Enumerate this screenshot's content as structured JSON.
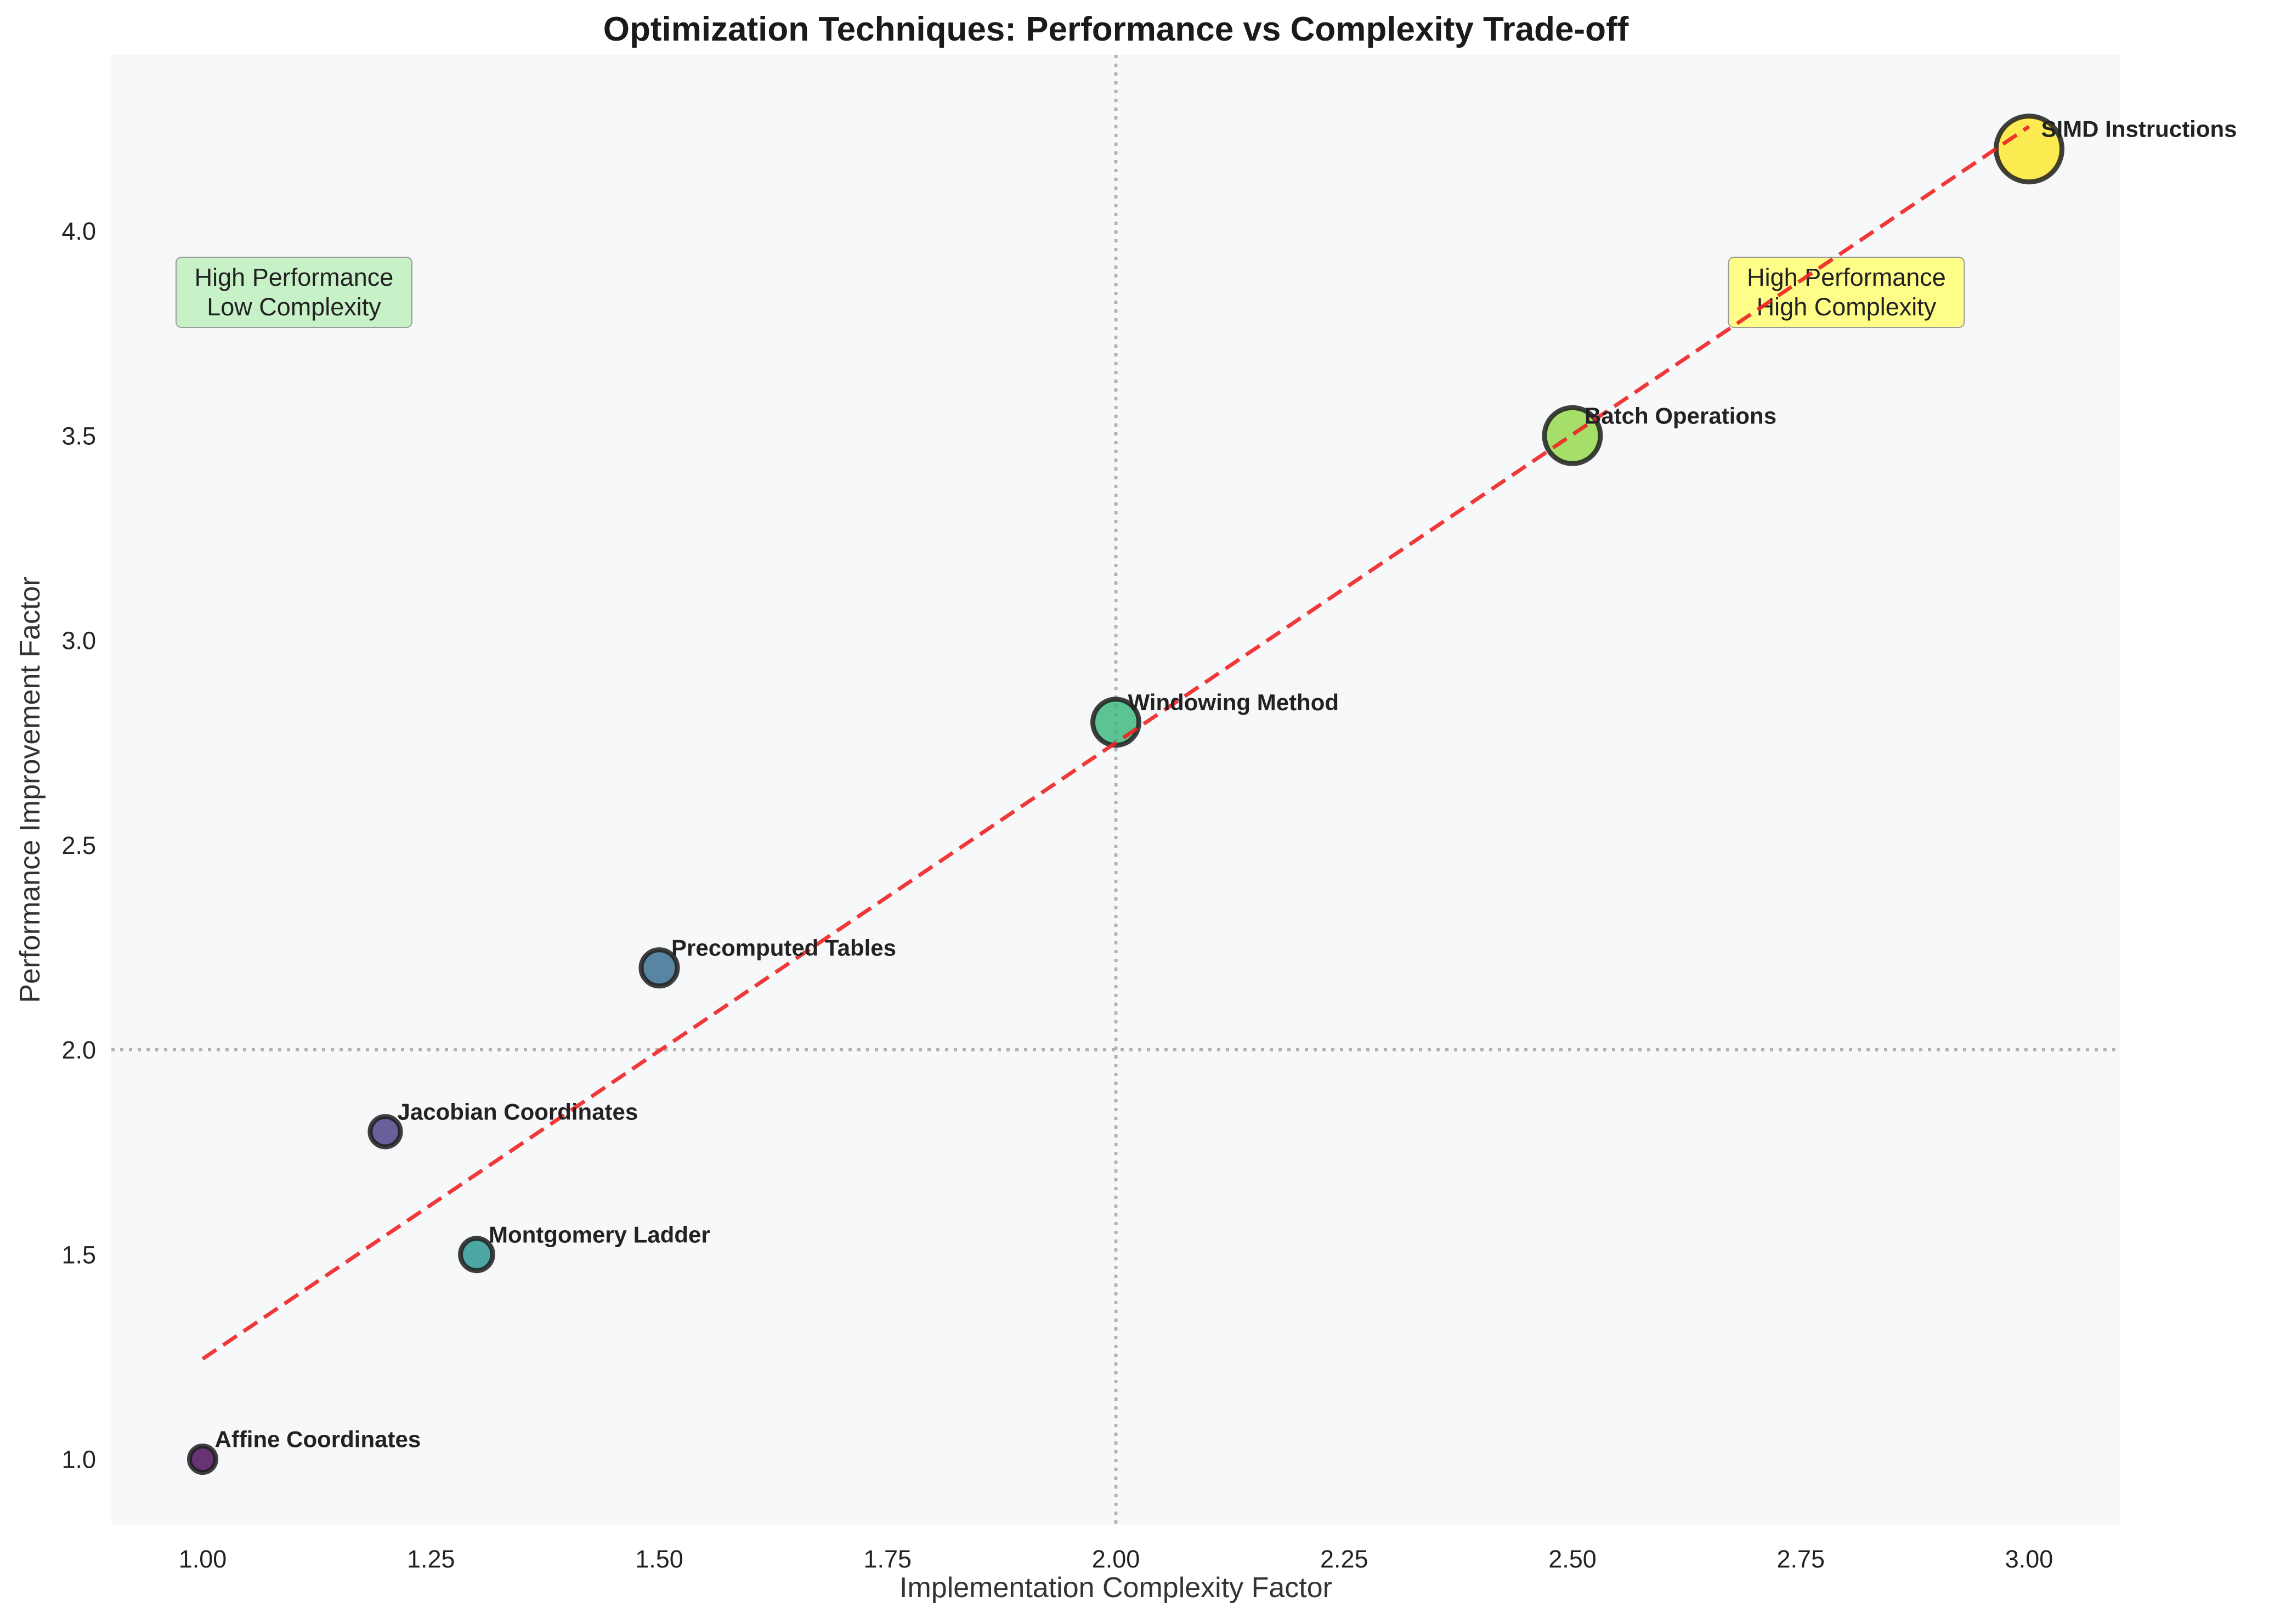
{
  "chart_data": {
    "type": "scatter",
    "title": "Optimization Techniques: Performance vs Complexity Trade-off",
    "xlabel": "Implementation Complexity Factor",
    "ylabel": "Performance Improvement Factor",
    "xlim": [
      0.9,
      3.1
    ],
    "ylim": [
      0.84,
      4.43
    ],
    "xticks": [
      1.0,
      1.25,
      1.5,
      1.75,
      2.0,
      2.25,
      2.5,
      2.75,
      3.0
    ],
    "xtick_labels": [
      "1.00",
      "1.25",
      "1.50",
      "1.75",
      "2.00",
      "2.25",
      "2.50",
      "2.75",
      "3.00"
    ],
    "yticks": [
      1.0,
      1.5,
      2.0,
      2.5,
      3.0,
      3.5,
      4.0
    ],
    "ytick_labels": [
      "1.0",
      "1.5",
      "2.0",
      "2.5",
      "3.0",
      "3.5",
      "4.0"
    ],
    "grid": false,
    "background": "#f7f8fa",
    "reference_lines": {
      "x": 2.0,
      "y": 2.0,
      "style": "dotted",
      "color": "#b3b3b3"
    },
    "trend_line": {
      "x": [
        1.0,
        3.0
      ],
      "y": [
        1.245,
        4.255
      ],
      "color": "#ee2222",
      "style": "dashed"
    },
    "points": [
      {
        "label": "Affine Coordinates",
        "x": 1.0,
        "y": 1.0,
        "color": "#440154"
      },
      {
        "label": "Jacobian Coordinates",
        "x": 1.2,
        "y": 1.8,
        "color": "#443983"
      },
      {
        "label": "Montgomery Ladder",
        "x": 1.3,
        "y": 1.5,
        "color": "#21918c"
      },
      {
        "label": "Precomputed Tables",
        "x": 1.5,
        "y": 2.2,
        "color": "#31688e"
      },
      {
        "label": "Windowing Method",
        "x": 2.0,
        "y": 2.8,
        "color": "#35b779"
      },
      {
        "label": "Batch Operations",
        "x": 2.5,
        "y": 3.5,
        "color": "#90d743"
      },
      {
        "label": "SIMD Instructions",
        "x": 3.0,
        "y": 4.2,
        "color": "#fde725"
      }
    ],
    "annotations": [
      {
        "lines": [
          "High Performance",
          "Low Complexity"
        ],
        "x": 1.1,
        "y": 3.85,
        "fill": "#c1efc1"
      },
      {
        "lines": [
          "High Performance",
          "High Complexity"
        ],
        "x": 2.8,
        "y": 3.85,
        "fill": "#fdfd7a"
      }
    ]
  }
}
